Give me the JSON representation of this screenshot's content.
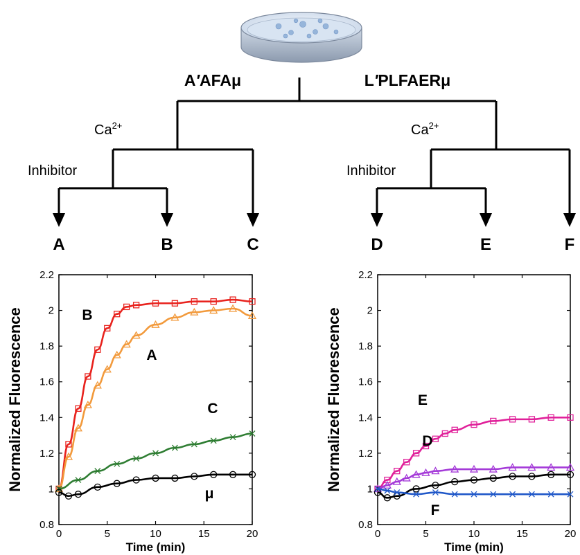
{
  "tree": {
    "left_title_a": "A",
    "left_title_prime": "′",
    "left_title_b": "AFAμ",
    "right_title_a": "L",
    "right_title_prime": "′",
    "right_title_b": "PLFAERμ",
    "ca_base": "Ca",
    "ca_sup": "2+",
    "inhibitor": "Inhibitor",
    "leaves": [
      "A",
      "B",
      "C",
      "D",
      "E",
      "F"
    ]
  },
  "icons": {
    "dish": "petri-dish-icon"
  },
  "chart_data": [
    {
      "type": "scatter",
      "title": "",
      "xlabel": "Time (min)",
      "ylabel": "Normalized Fluorescence",
      "xlim": [
        0,
        20
      ],
      "ylim": [
        0.8,
        2.2
      ],
      "xticks": [
        "0",
        "5",
        "10",
        "15",
        "20"
      ],
      "yticks": [
        "0.8",
        "1",
        "1.2",
        "1.4",
        "1.6",
        "1.8",
        "2",
        "2.2"
      ],
      "grid": false,
      "series": [
        {
          "name": "B",
          "marker": "square",
          "color": "#e8231e",
          "x": [
            0,
            1,
            2,
            3,
            4,
            5,
            6,
            7,
            8,
            10,
            12,
            14,
            16,
            18,
            20
          ],
          "values": [
            1.0,
            1.25,
            1.45,
            1.63,
            1.78,
            1.9,
            1.98,
            2.02,
            2.03,
            2.04,
            2.04,
            2.05,
            2.05,
            2.06,
            2.05
          ]
        },
        {
          "name": "A",
          "marker": "triangle",
          "color": "#f29a3c",
          "x": [
            0,
            1,
            2,
            3,
            4,
            5,
            6,
            7,
            8,
            10,
            12,
            14,
            16,
            18,
            20
          ],
          "values": [
            1.0,
            1.18,
            1.34,
            1.47,
            1.58,
            1.67,
            1.75,
            1.81,
            1.86,
            1.92,
            1.96,
            1.99,
            2.0,
            2.01,
            1.97
          ]
        },
        {
          "name": "C",
          "marker": "cross",
          "color": "#2e7d32",
          "x": [
            0,
            2,
            4,
            6,
            8,
            10,
            12,
            14,
            16,
            18,
            20
          ],
          "values": [
            1.0,
            1.05,
            1.1,
            1.14,
            1.17,
            1.2,
            1.23,
            1.25,
            1.27,
            1.29,
            1.31
          ]
        },
        {
          "name": "μ",
          "marker": "circle",
          "color": "#000000",
          "x": [
            0,
            1,
            2,
            4,
            6,
            8,
            10,
            12,
            14,
            16,
            18,
            20
          ],
          "values": [
            0.98,
            0.96,
            0.97,
            1.01,
            1.03,
            1.05,
            1.06,
            1.06,
            1.07,
            1.08,
            1.08,
            1.08
          ]
        }
      ]
    },
    {
      "type": "scatter",
      "title": "",
      "xlabel": "Time (min)",
      "ylabel": "Normalized Fluorescence",
      "xlim": [
        0,
        20
      ],
      "ylim": [
        0.8,
        2.2
      ],
      "xticks": [
        "0",
        "5",
        "10",
        "15",
        "20"
      ],
      "yticks": [
        "0.8",
        "1",
        "1.2",
        "1.4",
        "1.6",
        "1.8",
        "2",
        "2.2"
      ],
      "grid": false,
      "series": [
        {
          "name": "E",
          "marker": "square",
          "color": "#e0219a",
          "x": [
            0,
            1,
            2,
            3,
            4,
            5,
            6,
            7,
            8,
            10,
            12,
            14,
            16,
            18,
            20
          ],
          "values": [
            1.0,
            1.05,
            1.1,
            1.15,
            1.2,
            1.24,
            1.28,
            1.31,
            1.33,
            1.36,
            1.38,
            1.39,
            1.39,
            1.4,
            1.4
          ]
        },
        {
          "name": "D",
          "marker": "triangle",
          "color": "#a43ad8",
          "x": [
            0,
            1,
            2,
            3,
            4,
            5,
            6,
            8,
            10,
            12,
            14,
            16,
            18,
            20
          ],
          "values": [
            1.0,
            1.02,
            1.04,
            1.06,
            1.08,
            1.09,
            1.1,
            1.11,
            1.11,
            1.11,
            1.12,
            1.12,
            1.12,
            1.12
          ]
        },
        {
          "name": "μ",
          "marker": "circle",
          "color": "#000000",
          "x": [
            0,
            1,
            2,
            4,
            6,
            8,
            10,
            12,
            14,
            16,
            18,
            20
          ],
          "values": [
            0.98,
            0.95,
            0.96,
            1.0,
            1.02,
            1.04,
            1.05,
            1.06,
            1.07,
            1.07,
            1.08,
            1.08
          ]
        },
        {
          "name": "F",
          "marker": "cross",
          "color": "#1f57c8",
          "x": [
            0,
            1,
            2,
            4,
            6,
            8,
            10,
            12,
            14,
            16,
            18,
            20
          ],
          "values": [
            1.0,
            0.99,
            0.98,
            0.97,
            0.98,
            0.97,
            0.97,
            0.97,
            0.97,
            0.97,
            0.97,
            0.97
          ]
        }
      ]
    }
  ]
}
